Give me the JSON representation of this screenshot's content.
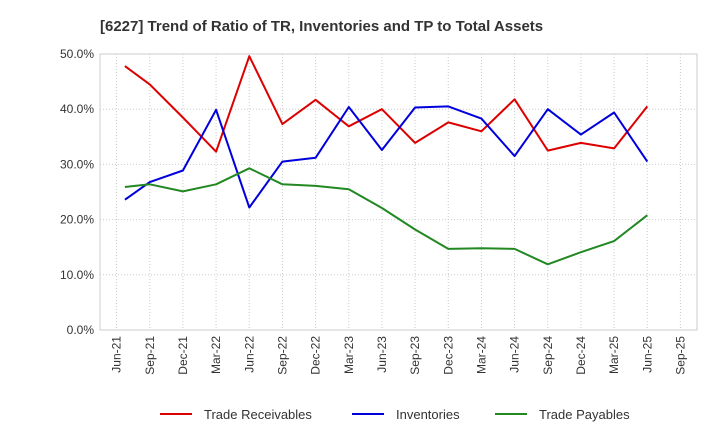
{
  "chart_data": {
    "type": "line",
    "title": "[6227]  Trend of Ratio of TR, Inventories and TP to Total Assets",
    "xlabel": "",
    "ylabel": "",
    "x_ticks": [
      "Jun-21",
      "Sep-21",
      "Dec-21",
      "Mar-22",
      "Jun-22",
      "Sep-22",
      "Dec-22",
      "Mar-23",
      "Jun-23",
      "Sep-23",
      "Dec-23",
      "Mar-24",
      "Jun-24",
      "Sep-24",
      "Dec-24",
      "Mar-25",
      "Jun-25",
      "Sep-25"
    ],
    "y_ticks": [
      "0.0%",
      "10.0%",
      "20.0%",
      "30.0%",
      "40.0%",
      "50.0%"
    ],
    "ylim": [
      0,
      50
    ],
    "grid": true,
    "legend_position": "bottom",
    "categories": [
      "Jul-21",
      "Sep-21",
      "Dec-21",
      "Mar-22",
      "Jun-22",
      "Sep-22",
      "Dec-22",
      "Mar-23",
      "Jun-23",
      "Sep-23",
      "Dec-23",
      "Mar-24",
      "Jun-24",
      "Sep-24",
      "Dec-24",
      "Mar-25",
      "Jun-25"
    ],
    "series": [
      {
        "name": "Trade Receivables",
        "color": "#dd0000",
        "values": [
          47.8,
          44.5,
          38.5,
          32.3,
          49.6,
          37.3,
          41.7,
          36.9,
          40.0,
          33.9,
          37.6,
          36.0,
          41.8,
          32.5,
          33.9,
          32.9,
          40.5
        ]
      },
      {
        "name": "Inventories",
        "color": "#0000dd",
        "values": [
          23.6,
          26.8,
          28.9,
          39.9,
          22.2,
          30.5,
          31.2,
          40.4,
          32.6,
          40.3,
          40.5,
          38.3,
          31.5,
          40.0,
          35.4,
          39.4,
          30.5
        ]
      },
      {
        "name": "Trade Payables",
        "color": "#228822",
        "values": [
          25.9,
          26.4,
          25.1,
          26.4,
          29.3,
          26.4,
          26.1,
          25.5,
          22.1,
          18.2,
          14.7,
          14.8,
          14.7,
          11.9,
          14.1,
          16.1,
          20.8
        ]
      }
    ]
  }
}
